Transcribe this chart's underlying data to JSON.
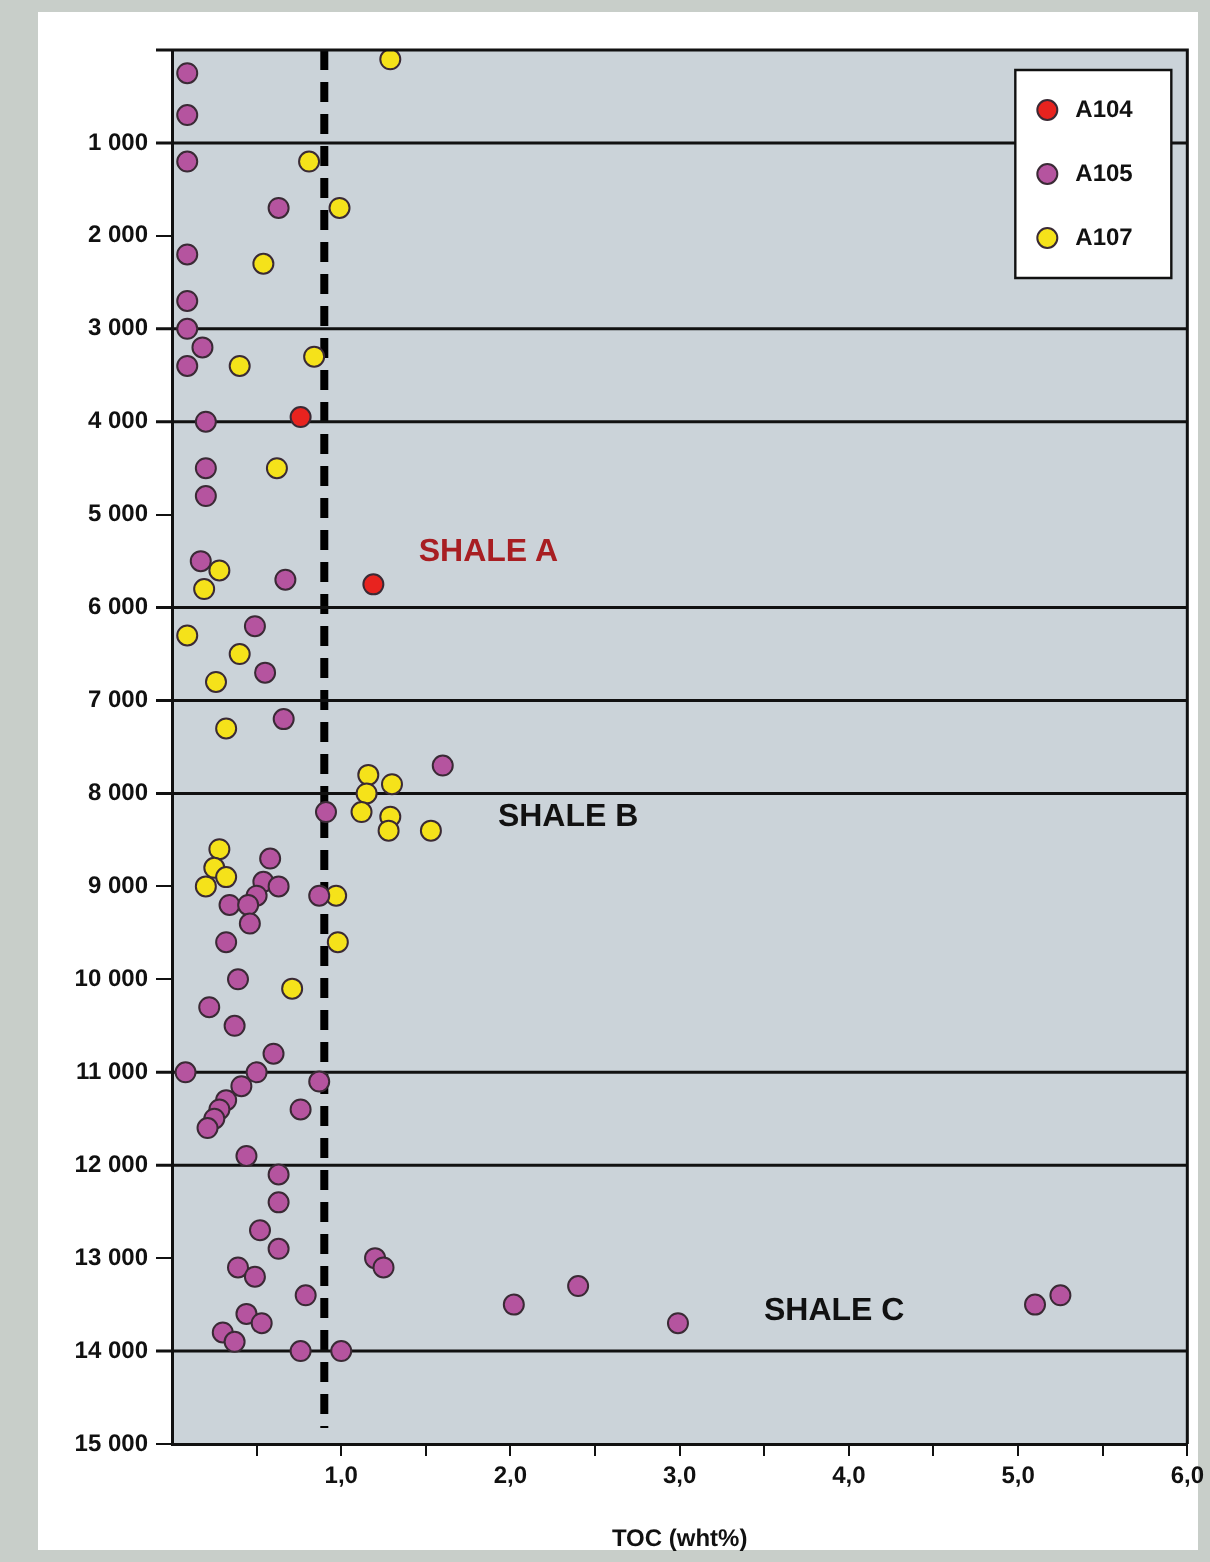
{
  "chart_data": {
    "type": "scatter",
    "xlabel": "TOC (wht%)",
    "xlim": [
      0,
      6
    ],
    "ylim": [
      15000,
      0
    ],
    "xticks": [
      {
        "value": 0.5,
        "label": null
      },
      {
        "value": 1,
        "label": "1,0"
      },
      {
        "value": 1.5,
        "label": null
      },
      {
        "value": 2,
        "label": "2,0"
      },
      {
        "value": 2.5,
        "label": null
      },
      {
        "value": 3,
        "label": "3,0"
      },
      {
        "value": 3.5,
        "label": null
      },
      {
        "value": 4,
        "label": "4,0"
      },
      {
        "value": 4.5,
        "label": null
      },
      {
        "value": 5,
        "label": "5,0"
      },
      {
        "value": 5.5,
        "label": null
      },
      {
        "value": 6,
        "label": "6,0"
      }
    ],
    "yticks": [
      {
        "value": 1000,
        "label": "1 000"
      },
      {
        "value": 2000,
        "label": "2 000"
      },
      {
        "value": 3000,
        "label": "3 000"
      },
      {
        "value": 4000,
        "label": "4 000"
      },
      {
        "value": 5000,
        "label": "5 000"
      },
      {
        "value": 6000,
        "label": "6 000"
      },
      {
        "value": 7000,
        "label": "7 000"
      },
      {
        "value": 8000,
        "label": "8 000"
      },
      {
        "value": 9000,
        "label": "9 000"
      },
      {
        "value": 10000,
        "label": "10 000"
      },
      {
        "value": 11000,
        "label": "11 000"
      },
      {
        "value": 12000,
        "label": "12 000"
      },
      {
        "value": 13000,
        "label": "13 000"
      },
      {
        "value": 14000,
        "label": "14 000"
      },
      {
        "value": 15000,
        "label": "15 000"
      }
    ],
    "marker": "circle",
    "legend": "top right",
    "series": [
      {
        "name": "A104",
        "color": "#e8231f",
        "x": [
          0.76,
          1.19
        ],
        "values": [
          3950,
          5750
        ]
      },
      {
        "name": "A105",
        "color": "#b5549f",
        "x": [
          0.09,
          0.09,
          0.09,
          0.63,
          0.09,
          0.09,
          0.09,
          0.18,
          0.09,
          0.2,
          0.2,
          0.2,
          0.17,
          0.67,
          0.49,
          0.55,
          0.66,
          1.6,
          0.91,
          0.58,
          0.54,
          0.63,
          0.5,
          0.87,
          0.34,
          0.45,
          0.46,
          0.32,
          0.39,
          0.22,
          0.37,
          0.6,
          0.08,
          0.5,
          0.87,
          0.41,
          0.32,
          0.28,
          0.25,
          0.21,
          0.76,
          0.44,
          0.63,
          0.63,
          0.52,
          0.63,
          0.39,
          0.49,
          1.2,
          1.25,
          0.79,
          2.4,
          2.02,
          2.99,
          5.1,
          5.25,
          0.44,
          0.53,
          0.3,
          0.37,
          0.76,
          1.0
        ],
        "values": [
          250,
          700,
          1200,
          1700,
          2200,
          2700,
          3000,
          3200,
          3400,
          4000,
          4500,
          4800,
          5500,
          5700,
          6200,
          6700,
          7200,
          7700,
          8200,
          8700,
          8950,
          9000,
          9100,
          9100,
          9200,
          9200,
          9400,
          9600,
          10000,
          10300,
          10500,
          10800,
          11000,
          11000,
          11100,
          11150,
          11300,
          11400,
          11500,
          11600,
          11400,
          11900,
          12100,
          12400,
          12700,
          12900,
          13100,
          13200,
          13000,
          13100,
          13400,
          13300,
          13500,
          13700,
          13500,
          13400,
          13600,
          13700,
          13800,
          13900,
          14000,
          14000
        ]
      },
      {
        "name": "A107",
        "color": "#f5e21a",
        "x": [
          1.29,
          0.81,
          0.99,
          0.54,
          0.84,
          0.4,
          0.62,
          0.28,
          0.19,
          0.09,
          0.4,
          0.26,
          0.32,
          1.16,
          1.3,
          1.15,
          1.12,
          1.29,
          1.28,
          1.53,
          0.28,
          0.25,
          0.32,
          0.2,
          0.97,
          0.98,
          0.71
        ],
        "values": [
          100,
          1200,
          1700,
          2300,
          3300,
          3400,
          4500,
          5600,
          5800,
          6300,
          6500,
          6800,
          7300,
          7800,
          7900,
          8000,
          8200,
          8250,
          8400,
          8400,
          8600,
          8800,
          8900,
          9000,
          9100,
          9600,
          10100
        ]
      }
    ],
    "ref_lines": [
      {
        "axis": "x",
        "value": 0.9,
        "line_style": "dashed",
        "color": "#000000"
      },
      {
        "axis": "y",
        "value": 1000,
        "color": "#111111"
      },
      {
        "axis": "y",
        "value": 3000,
        "color": "#111111"
      },
      {
        "axis": "y",
        "value": 4000,
        "color": "#111111"
      },
      {
        "axis": "y",
        "value": 6000,
        "color": "#111111"
      },
      {
        "axis": "y",
        "value": 7000,
        "color": "#111111"
      },
      {
        "axis": "y",
        "value": 8000,
        "color": "#111111"
      },
      {
        "axis": "y",
        "value": 11000,
        "color": "#111111"
      },
      {
        "axis": "y",
        "value": 12000,
        "color": "#111111"
      },
      {
        "axis": "y",
        "value": 14000,
        "color": "#111111"
      }
    ],
    "annotations": [
      "SHALE A",
      "SHALE B",
      "SHALE C"
    ]
  }
}
